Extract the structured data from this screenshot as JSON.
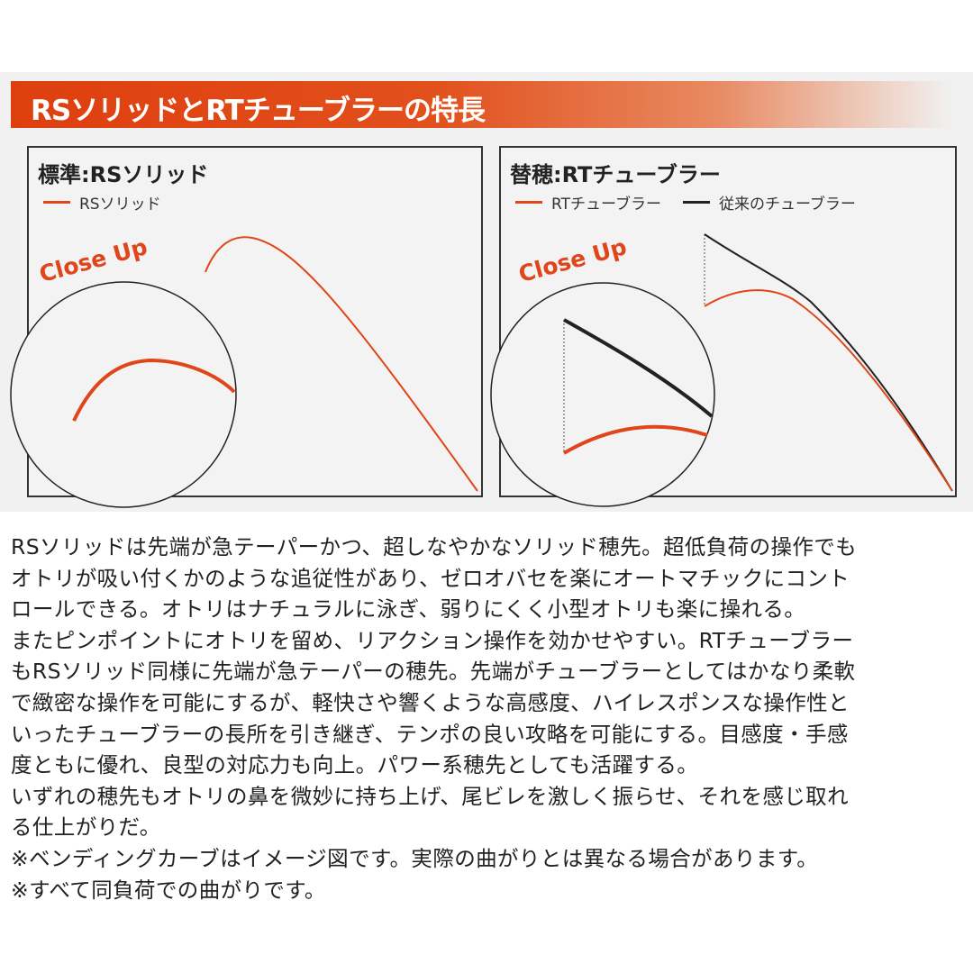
{
  "header": {
    "title": "RSソリッドとRTチューブラーの特長"
  },
  "colors": {
    "accent": "#e0461a",
    "black": "#222222"
  },
  "left_panel": {
    "title": "標準:RSソリッド",
    "legend": [
      {
        "label": "RSソリッド",
        "color": "#e0461a"
      }
    ],
    "closeup": "Close Up"
  },
  "right_panel": {
    "title": "替穂:RTチューブラー",
    "legend": [
      {
        "label": "RTチューブラー",
        "color": "#e0461a"
      },
      {
        "label": "従来のチューブラー",
        "color": "#222222"
      }
    ],
    "closeup": "Close Up"
  },
  "description": {
    "lines": [
      "RSソリッドは先端が急テーパーかつ、超しなやかなソリッド穂先。超低負荷の操作でも",
      "オトリが吸い付くかのような追従性があり、ゼロオバセを楽にオートマチックにコント",
      "ロールできる。オトリはナチュラルに泳ぎ、弱りにくく小型オトリも楽に操れる。",
      "またピンポイントにオトリを留め、リアクション操作を効かせやすい。RTチューブラー",
      "もRSソリッド同様に先端が急テーパーの穂先。先端がチューブラーとしてはかなり柔軟",
      "で緻密な操作を可能にするが、軽快さや響くような高感度、ハイレスポンスな操作性と",
      "いったチューブラーの長所を引き継ぎ、テンポの良い攻略を可能にする。目感度・手感",
      "度ともに優れ、良型の対応力も向上。パワー系穂先としても活躍する。",
      "いずれの穂先もオトリの鼻を微妙に持ち上げ、尾ビレを激しく振らせ、それを感じ取れ",
      "る仕上がりだ。",
      "※ベンディングカーブはイメージ図です。実際の曲がりとは異なる場合があります。",
      "※すべて同負荷での曲がりです。"
    ]
  }
}
